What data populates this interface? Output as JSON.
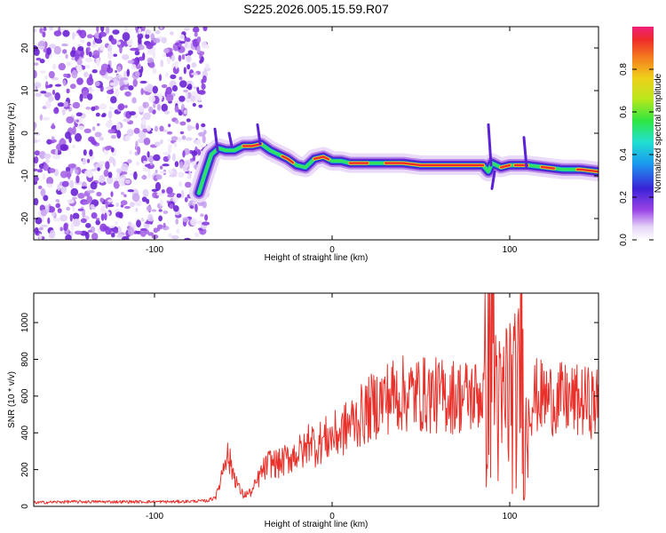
{
  "figure": {
    "title": "S225.2026.005.15.59.R07"
  },
  "chart_data": [
    {
      "type": "heatmap",
      "xlabel": "Height of straight line (km)",
      "ylabel": "Frequency (Hz)",
      "xlim": [
        -168,
        150
      ],
      "ylim": [
        -25,
        25
      ],
      "x_ticks": [
        -100,
        0,
        100
      ],
      "y_ticks": [
        -20,
        -10,
        0,
        10,
        20
      ],
      "colorbar": {
        "label": "Normalized spectral amplitude",
        "range": [
          0,
          1
        ],
        "ticks": [
          0,
          0.2,
          0.4,
          0.6,
          0.8
        ]
      },
      "ridge": {
        "name": "",
        "x": [
          -75,
          -72,
          -68,
          -64,
          -60,
          -55,
          -50,
          -45,
          -40,
          -35,
          -30,
          -25,
          -20,
          -15,
          -10,
          -5,
          0,
          5,
          10,
          20,
          30,
          40,
          50,
          60,
          70,
          80,
          85,
          88,
          90,
          95,
          100,
          105,
          110,
          120,
          130,
          140,
          150
        ],
        "y": [
          -14,
          -10,
          -5,
          -3.5,
          -4,
          -4,
          -3,
          -3,
          -2.5,
          -4,
          -5,
          -6,
          -7.5,
          -8,
          -6,
          -5.5,
          -6.5,
          -6.5,
          -7,
          -7,
          -7,
          -7,
          -7.5,
          -7.5,
          -7.5,
          -7.5,
          -7.5,
          -9,
          -7,
          -8,
          -7.5,
          -7.5,
          -7.5,
          -8,
          -8.5,
          -8.5,
          -9
        ]
      }
    },
    {
      "type": "line",
      "xlabel": "Height of straight line (km)",
      "ylabel": "SNR (10 * v/v)",
      "xlim": [
        -168,
        150
      ],
      "ylim": [
        0,
        1160
      ],
      "x_ticks": [
        -100,
        0,
        100
      ],
      "y_ticks": [
        0,
        200,
        400,
        600,
        800,
        1000
      ],
      "series": [
        {
          "name": "",
          "color": "#e8312b",
          "x": [
            -168,
            -150,
            -120,
            -90,
            -70,
            -65,
            -62,
            -60,
            -58,
            -55,
            -52,
            -50,
            -45,
            -40,
            -35,
            -30,
            -25,
            -20,
            -15,
            -12,
            -10,
            -8,
            -5,
            0,
            5,
            10,
            15,
            20,
            25,
            30,
            35,
            40,
            50,
            60,
            70,
            80,
            85,
            88,
            90,
            92,
            95,
            98,
            100,
            103,
            105,
            107,
            108,
            110,
            115,
            120,
            130,
            140,
            150
          ],
          "y": [
            20,
            25,
            25,
            25,
            30,
            60,
            180,
            300,
            250,
            170,
            90,
            60,
            80,
            180,
            240,
            230,
            260,
            290,
            300,
            400,
            320,
            340,
            360,
            380,
            400,
            450,
            480,
            520,
            560,
            590,
            610,
            610,
            610,
            600,
            600,
            600,
            620,
            660,
            1100,
            700,
            450,
            620,
            620,
            560,
            600,
            1150,
            120,
            560,
            600,
            590,
            580,
            570,
            560
          ]
        }
      ]
    }
  ]
}
